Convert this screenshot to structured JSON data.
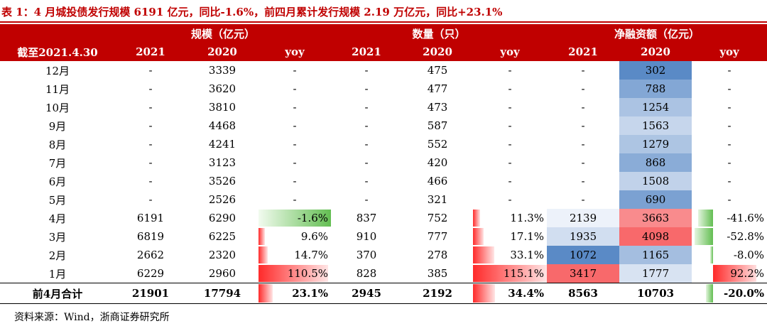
{
  "title": "表 1：4 月城投债发行规模 6191 亿元，同比-1.6%，前四月累计发行规模 2.19 万亿元，同比+23.1%",
  "source": "资料来源：Wind，浙商证券研究所",
  "header": {
    "groups": [
      "规模（亿元）",
      "数量（只）",
      "净融资额（亿元）"
    ],
    "corner": "截至2021.4.30",
    "cols": [
      "2021",
      "2020",
      "yoy",
      "2021",
      "2020",
      "yoy",
      "2021",
      "2020",
      "yoy"
    ]
  },
  "colors": {
    "header_bg": "#c00000",
    "positive_bar": "#ff2a2a",
    "negative_bar": "#63be52",
    "heat_high": "#f8696b",
    "heat_low": "#5a8ac6"
  },
  "chart_data": {
    "type": "table",
    "rows": [
      {
        "label": "12月",
        "scale_2021": "-",
        "scale_2020": "3339",
        "scale_yoy": "-",
        "count_2021": "-",
        "count_2020": "475",
        "count_yoy": "-",
        "net_2021": "-",
        "net_2020": "302",
        "net_yoy": "-"
      },
      {
        "label": "11月",
        "scale_2021": "-",
        "scale_2020": "3620",
        "scale_yoy": "-",
        "count_2021": "-",
        "count_2020": "477",
        "count_yoy": "-",
        "net_2021": "-",
        "net_2020": "788",
        "net_yoy": "-"
      },
      {
        "label": "10月",
        "scale_2021": "-",
        "scale_2020": "3810",
        "scale_yoy": "-",
        "count_2021": "-",
        "count_2020": "473",
        "count_yoy": "-",
        "net_2021": "-",
        "net_2020": "1254",
        "net_yoy": "-"
      },
      {
        "label": "9月",
        "scale_2021": "-",
        "scale_2020": "4468",
        "scale_yoy": "-",
        "count_2021": "-",
        "count_2020": "587",
        "count_yoy": "-",
        "net_2021": "-",
        "net_2020": "1563",
        "net_yoy": "-"
      },
      {
        "label": "8月",
        "scale_2021": "-",
        "scale_2020": "4241",
        "scale_yoy": "-",
        "count_2021": "-",
        "count_2020": "552",
        "count_yoy": "-",
        "net_2021": "-",
        "net_2020": "1279",
        "net_yoy": "-"
      },
      {
        "label": "7月",
        "scale_2021": "-",
        "scale_2020": "3123",
        "scale_yoy": "-",
        "count_2021": "-",
        "count_2020": "420",
        "count_yoy": "-",
        "net_2021": "-",
        "net_2020": "868",
        "net_yoy": "-"
      },
      {
        "label": "6月",
        "scale_2021": "-",
        "scale_2020": "3526",
        "scale_yoy": "-",
        "count_2021": "-",
        "count_2020": "466",
        "count_yoy": "-",
        "net_2021": "-",
        "net_2020": "1508",
        "net_yoy": "-"
      },
      {
        "label": "5月",
        "scale_2021": "-",
        "scale_2020": "2526",
        "scale_yoy": "-",
        "count_2021": "-",
        "count_2020": "321",
        "count_yoy": "-",
        "net_2021": "-",
        "net_2020": "690",
        "net_yoy": "-"
      },
      {
        "label": "4月",
        "scale_2021": "6191",
        "scale_2020": "6290",
        "scale_yoy": "-1.6%",
        "count_2021": "837",
        "count_2020": "752",
        "count_yoy": "11.3%",
        "net_2021": "2139",
        "net_2020": "3663",
        "net_yoy": "-41.6%"
      },
      {
        "label": "3月",
        "scale_2021": "6819",
        "scale_2020": "6225",
        "scale_yoy": "9.6%",
        "count_2021": "910",
        "count_2020": "777",
        "count_yoy": "17.1%",
        "net_2021": "1935",
        "net_2020": "4098",
        "net_yoy": "-52.8%"
      },
      {
        "label": "2月",
        "scale_2021": "2662",
        "scale_2020": "2320",
        "scale_yoy": "14.7%",
        "count_2021": "370",
        "count_2020": "278",
        "count_yoy": "33.1%",
        "net_2021": "1072",
        "net_2020": "1165",
        "net_yoy": "-8.0%"
      },
      {
        "label": "1月",
        "scale_2021": "6229",
        "scale_2020": "2960",
        "scale_yoy": "110.5%",
        "count_2021": "828",
        "count_2020": "385",
        "count_yoy": "115.1%",
        "net_2021": "3417",
        "net_2020": "1777",
        "net_yoy": "92.2%"
      }
    ],
    "total": {
      "label": "前4月合计",
      "scale_2021": "21901",
      "scale_2020": "17794",
      "scale_yoy": "23.1%",
      "count_2021": "2945",
      "count_2020": "2192",
      "count_yoy": "34.4%",
      "net_2021": "8563",
      "net_2020": "10703",
      "net_yoy": "-20.0%"
    }
  }
}
